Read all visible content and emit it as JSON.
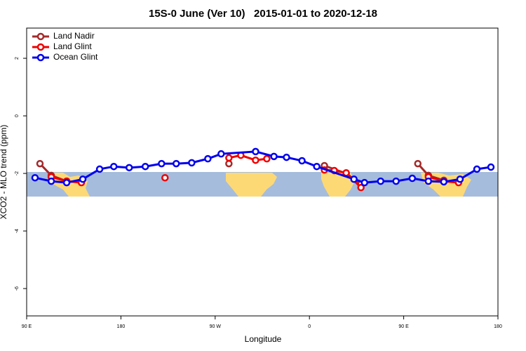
{
  "chart_data": {
    "type": "line",
    "title": "15S-0 June (Ver 10)   2015-01-01 to 2020-12-18",
    "xlabel": "Longitude",
    "ylabel": "XCO2 - MLO trend (ppm)",
    "xlim": [
      90,
      540
    ],
    "xticks": [
      {
        "value": 90,
        "label": "90 E"
      },
      {
        "value": 180,
        "label": "180"
      },
      {
        "value": 270,
        "label": "90 W"
      },
      {
        "value": 360,
        "label": "0"
      },
      {
        "value": 450,
        "label": "90 E"
      },
      {
        "value": 540,
        "label": "180"
      }
    ],
    "ylim": [
      -6.95,
      3.05
    ],
    "yticks": [
      2,
      0,
      -2,
      -4,
      -6
    ],
    "legend": "top-left",
    "series": [
      {
        "name": "Land Nadir",
        "color": "#a52a2a",
        "x": [
          102.7,
          113.5,
          128.2,
          null,
          283.1,
          null,
          374.3,
          395.1,
          409.2,
          null,
          463.5,
          473.6,
          488.3
        ],
        "values": [
          -1.66,
          -2.07,
          -2.27,
          null,
          -1.66,
          null,
          -1.73,
          -2.0,
          -2.37,
          null,
          -1.66,
          -2.07,
          -2.24
        ]
      },
      {
        "name": "Land Glint",
        "color": "#ee0000",
        "x": [
          113.5,
          128.2,
          142.3,
          null,
          222.1,
          null,
          283.1,
          294.5,
          308.6,
          319.3,
          null,
          374.3,
          383.7,
          395.1,
          409.2,
          null,
          473.6,
          488.3,
          502.4
        ],
        "values": [
          -2.12,
          -2.27,
          -2.32,
          null,
          -2.15,
          null,
          -1.46,
          -1.37,
          -1.54,
          -1.49,
          null,
          -1.88,
          -1.9,
          -1.98,
          -2.49,
          null,
          -2.12,
          -2.27,
          -2.32
        ]
      },
      {
        "name": "Ocean Glint",
        "color": "#0000ee",
        "x": [
          98.0,
          113.5,
          128.2,
          143.6,
          159.7,
          173.2,
          187.9,
          203.3,
          218.8,
          232.8,
          247.6,
          263.0,
          275.7,
          308.6,
          326.1,
          338.1,
          352.9,
          367.0,
          402.5,
          412.6,
          428.0,
          442.7,
          458.2,
          473.6,
          488.3,
          503.8,
          519.9,
          533.3
        ],
        "values": [
          -2.15,
          -2.27,
          -2.32,
          -2.2,
          -1.85,
          -1.76,
          -1.8,
          -1.76,
          -1.66,
          -1.66,
          -1.63,
          -1.49,
          -1.32,
          -1.24,
          -1.41,
          -1.44,
          -1.56,
          -1.76,
          -2.2,
          -2.32,
          -2.27,
          -2.27,
          -2.17,
          -2.27,
          -2.29,
          -2.2,
          -1.85,
          -1.78
        ]
      }
    ]
  }
}
